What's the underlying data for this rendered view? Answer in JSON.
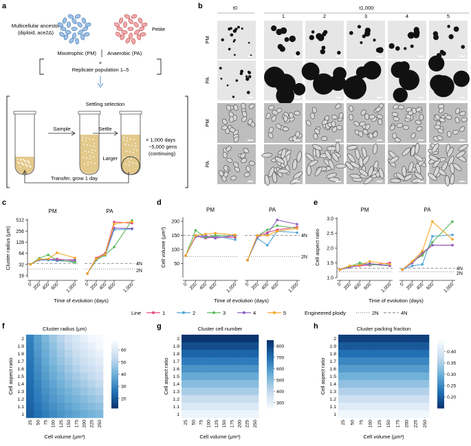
{
  "panels": {
    "a": "a",
    "b": "b",
    "c": "c",
    "d": "d",
    "e": "e",
    "f": "f",
    "g": "g",
    "h": "h"
  },
  "schematic": {
    "ancestor_title": "Multicellular ancestor",
    "ancestor_sub": "(diploid, ace2Δ)",
    "petite": "Petite",
    "pm": "Mixotrophic (PM)",
    "pa": "Anaerobic (PA)",
    "times": "×",
    "replicate": "Replicate population 1–5",
    "settling": "Settling selection",
    "sample": "Sample",
    "settle": "Settle",
    "larger": "Larger",
    "days": "× 1,000 days",
    "gens": "~5,000 gens",
    "continuing": "(continuing)",
    "transfer": "Transfer, grow 1 day"
  },
  "micrographs": {
    "t0": "t0",
    "t1000": "t1,000",
    "cols": [
      "1",
      "2",
      "3",
      "4",
      "5"
    ],
    "rows": [
      "PM",
      "PA",
      "PM",
      "PA"
    ]
  },
  "colors": {
    "line1": "#e8467c",
    "line2": "#4ba3d6",
    "line3": "#5cb85c",
    "line4": "#8e5fbf",
    "line5": "#f5a623"
  },
  "legend": {
    "line_label": "Line",
    "lines": [
      "1",
      "2",
      "3",
      "4",
      "5"
    ],
    "eng_label": "Engineered ploidy",
    "p2n": "2N",
    "p4n": "4N"
  },
  "chart_data": [
    {
      "id": "c",
      "type": "line",
      "ylabel": "Cluster radius (μm)",
      "xlabel": "Time of evolution (days)",
      "yscale": "log2",
      "yticks": [
        16,
        32,
        64,
        128,
        256,
        512
      ],
      "ylim": [
        14,
        560
      ],
      "xticks": [
        "0",
        "200",
        "400",
        "600",
        "1,000"
      ],
      "facet_titles": [
        "PM",
        "PA"
      ],
      "ref": {
        "2N": 24,
        "4N": 34
      },
      "x": [
        0,
        200,
        400,
        600,
        1000
      ],
      "series": {
        "PM": [
          [
            32,
            45,
            43,
            45,
            40
          ],
          [
            32,
            42,
            42,
            40,
            38
          ],
          [
            32,
            47,
            58,
            42,
            36
          ],
          [
            32,
            43,
            44,
            42,
            43
          ],
          [
            32,
            44,
            45,
            66,
            48
          ]
        ],
        "PA": [
          [
            18,
            48,
            64,
            450,
            420
          ],
          [
            18,
            44,
            56,
            280,
            290
          ],
          [
            18,
            42,
            58,
            95,
            500
          ],
          [
            18,
            45,
            62,
            310,
            300
          ],
          [
            18,
            46,
            60,
            400,
            460
          ]
        ]
      }
    },
    {
      "id": "d",
      "type": "line",
      "ylabel": "Cell volume (μm³)",
      "xlabel": "Time of evolution (days)",
      "yticks": [
        50,
        100,
        150,
        200
      ],
      "ylim": [
        0,
        215
      ],
      "xticks": [
        "0",
        "200",
        "400",
        "600",
        "1,000"
      ],
      "facet_titles": [
        "PM",
        "PA"
      ],
      "ref": {
        "2N": 75,
        "4N": 150
      },
      "x": [
        0,
        200,
        400,
        600,
        1000
      ],
      "series": {
        "PM": [
          [
            78,
            148,
            140,
            145,
            143
          ],
          [
            78,
            150,
            142,
            148,
            135
          ],
          [
            78,
            168,
            143,
            150,
            148
          ],
          [
            78,
            145,
            148,
            140,
            150
          ],
          [
            78,
            150,
            155,
            158,
            152
          ]
        ],
        "PA": [
          [
            62,
            150,
            160,
            170,
            180
          ],
          [
            62,
            140,
            115,
            165,
            160
          ],
          [
            62,
            148,
            170,
            185,
            175
          ],
          [
            62,
            145,
            155,
            205,
            190
          ],
          [
            62,
            150,
            150,
            165,
            175
          ]
        ]
      }
    },
    {
      "id": "e",
      "type": "line",
      "ylabel": "Cell aspect ratio",
      "xlabel": "Time of evolution (days)",
      "yticks": [
        1.0,
        1.5,
        2.0,
        2.5,
        3.0
      ],
      "ylim": [
        1.0,
        3.05
      ],
      "xticks": [
        "0",
        "200",
        "400",
        "600",
        "1,000"
      ],
      "facet_titles": [
        "PM",
        "PA"
      ],
      "ref": {
        "2N": 1.2,
        "4N": 1.32
      },
      "x": [
        0,
        200,
        400,
        600,
        1000
      ],
      "series": {
        "PM": [
          [
            1.27,
            1.36,
            1.4,
            1.42,
            1.5
          ],
          [
            1.27,
            1.35,
            1.45,
            1.44,
            1.42
          ],
          [
            1.27,
            1.38,
            1.5,
            1.45,
            1.4
          ],
          [
            1.27,
            1.35,
            1.42,
            1.48,
            1.4
          ],
          [
            1.27,
            1.4,
            1.42,
            1.55,
            1.45
          ]
        ],
        "PA": [
          [
            1.27,
            1.5,
            1.8,
            2.1,
            2.1
          ],
          [
            1.27,
            1.4,
            1.45,
            2.4,
            2.45
          ],
          [
            1.27,
            1.55,
            1.75,
            2.2,
            2.9
          ],
          [
            1.27,
            1.5,
            1.85,
            2.1,
            2.1
          ],
          [
            1.27,
            1.55,
            1.9,
            2.9,
            2.3
          ]
        ]
      }
    },
    {
      "id": "f",
      "type": "heatmap",
      "title": "Cluster radius (μm)",
      "xlabel": "Cell volume (μm³)",
      "ylabel": "Cell aspect ratio",
      "x": [
        "25",
        "50",
        "75",
        "100",
        "125",
        "150",
        "175",
        "200",
        "225",
        "250"
      ],
      "y": [
        "2",
        "1.9",
        "1.8",
        "1.7",
        "1.6",
        "1.5",
        "1.4",
        "1.3",
        "1.2",
        "1.1",
        "1"
      ],
      "colorbar": {
        "ticks": [
          "60",
          "50",
          "40",
          "30",
          "20"
        ],
        "min": 12,
        "max": 68,
        "reversed": false
      },
      "model": {
        "base": 14,
        "vol": 0.16,
        "ar": 30
      }
    },
    {
      "id": "g",
      "type": "heatmap",
      "title": "Cluster cell number",
      "xlabel": "Cell volume (μm³)",
      "ylabel": "Cell aspect ratio",
      "x": [
        "25",
        "50",
        "75",
        "100",
        "125",
        "150",
        "175",
        "200",
        "225",
        "250"
      ],
      "y": [
        "2",
        "1.9",
        "1.8",
        "1.7",
        "1.6",
        "1.5",
        "1.4",
        "1.3",
        "1.2",
        "1.1",
        "1"
      ],
      "colorbar": {
        "ticks": [
          "800",
          "700",
          "600",
          "500",
          "400",
          "300"
        ],
        "min": 250,
        "max": 850,
        "reversed": true
      },
      "model": {
        "base": 280,
        "vol": 0,
        "ar": 560
      }
    },
    {
      "id": "h",
      "type": "heatmap",
      "title": "Cluster packing fraction",
      "xlabel": "Cell volume (μm³)",
      "ylabel": "Cell aspect ratio",
      "x": [
        "25",
        "50",
        "75",
        "100",
        "125",
        "150",
        "175",
        "200",
        "225",
        "250"
      ],
      "y": [
        "2",
        "1.9",
        "1.8",
        "1.7",
        "1.6",
        "1.5",
        "1.4",
        "1.3",
        "1.2",
        "1.1",
        "1"
      ],
      "colorbar": {
        "ticks": [
          "0.40",
          "0.35",
          "0.30",
          "0.25",
          "0.20"
        ],
        "min": 0.15,
        "max": 0.45,
        "reversed": false
      },
      "model": {
        "base": 0.44,
        "vol": 0,
        "ar": -0.27
      }
    }
  ]
}
